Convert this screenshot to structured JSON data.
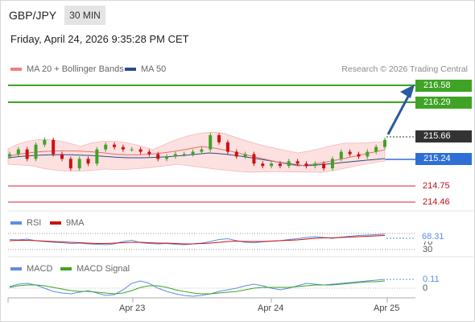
{
  "header": {
    "symbol": "GBP/JPY",
    "interval": "30 MIN",
    "datetime": "Friday, April 24, 2026 9:35:28 PM CET"
  },
  "legends": {
    "bollinger": "MA 20 + Bollinger Bands",
    "ma50": "MA 50",
    "rsi": "RSI",
    "rsi_ma": "9MA",
    "macd": "MACD",
    "macd_signal": "MACD Signal"
  },
  "credit": "Research © 2026 Trading Central",
  "price_levels": {
    "target2": "216.58",
    "target1": "216.29",
    "last": "215.66",
    "pivot": "215.24",
    "support1": "214.75",
    "support2": "214.46"
  },
  "rsi_labels": {
    "value": "68.31",
    "upper": "70",
    "lower": "30"
  },
  "macd_labels": {
    "value": "0.11",
    "zero": "0"
  },
  "x_axis": [
    "Apr 23",
    "Apr 24",
    "Apr 25"
  ],
  "colors": {
    "resistance": "#3fa325",
    "pivot": "#2e6fd6",
    "support": "#d0262f",
    "bollinger_fill": "#fde0e0",
    "rsi": "#5b8ee0",
    "rsi_ma": "#cc1111",
    "macd": "#5b8ee0",
    "macd_signal": "#3fa325",
    "up_candle": "#3fa325",
    "down_candle": "#cc1111"
  },
  "chart_data": {
    "type": "line",
    "price_candles_close": [
      215.3,
      215.4,
      215.2,
      215.5,
      215.6,
      215.3,
      215.2,
      215.0,
      215.2,
      215.1,
      215.4,
      215.5,
      215.45,
      215.4,
      215.4,
      215.35,
      215.3,
      215.2,
      215.25,
      215.3,
      215.3,
      215.35,
      215.4,
      215.7,
      215.55,
      215.35,
      215.25,
      215.3,
      215.1,
      215.05,
      215.1,
      215.05,
      215.15,
      215.1,
      215.05,
      215.1,
      215.0,
      215.2,
      215.35,
      215.3,
      215.25,
      215.35,
      215.45,
      215.6
    ],
    "rsi": [
      55,
      54,
      56,
      52,
      50,
      48,
      47,
      45,
      46,
      44,
      43,
      42,
      44,
      50,
      53,
      47,
      45,
      44,
      45,
      43,
      42,
      44,
      46,
      50,
      55,
      57,
      52,
      48,
      47,
      49,
      51,
      52,
      55,
      57,
      60,
      62,
      60,
      58,
      61,
      63,
      65,
      66,
      67,
      68.31
    ],
    "rsi_ma": [
      52,
      53,
      53,
      52,
      51,
      50,
      49,
      48,
      47,
      46,
      45,
      45,
      46,
      47,
      48,
      48,
      47,
      46,
      46,
      45,
      44,
      44,
      45,
      46,
      48,
      50,
      51,
      50,
      50,
      50,
      51,
      52,
      53,
      54,
      56,
      58,
      59,
      59,
      60,
      61,
      62,
      63,
      64,
      65
    ],
    "macd": [
      0.02,
      0.05,
      0.06,
      0.04,
      0.0,
      -0.04,
      -0.06,
      -0.07,
      -0.05,
      -0.03,
      -0.06,
      -0.09,
      -0.08,
      -0.02,
      0.06,
      0.09,
      0.06,
      0.0,
      -0.04,
      -0.07,
      -0.09,
      -0.1,
      -0.09,
      -0.07,
      -0.04,
      -0.02,
      0.0,
      0.03,
      0.05,
      0.03,
      0.0,
      -0.02,
      0.0,
      0.03,
      0.06,
      0.05,
      0.04,
      0.05,
      0.06,
      0.07,
      0.08,
      0.09,
      0.1,
      0.11
    ],
    "macd_signal": [
      0.01,
      0.03,
      0.04,
      0.04,
      0.03,
      0.01,
      -0.01,
      -0.03,
      -0.04,
      -0.04,
      -0.05,
      -0.06,
      -0.07,
      -0.06,
      -0.03,
      0.01,
      0.03,
      0.03,
      0.01,
      -0.02,
      -0.04,
      -0.06,
      -0.07,
      -0.07,
      -0.06,
      -0.05,
      -0.04,
      -0.02,
      0.0,
      0.01,
      0.01,
      0.01,
      0.01,
      0.02,
      0.03,
      0.04,
      0.04,
      0.04,
      0.05,
      0.06,
      0.07,
      0.08,
      0.08,
      0.09
    ]
  }
}
